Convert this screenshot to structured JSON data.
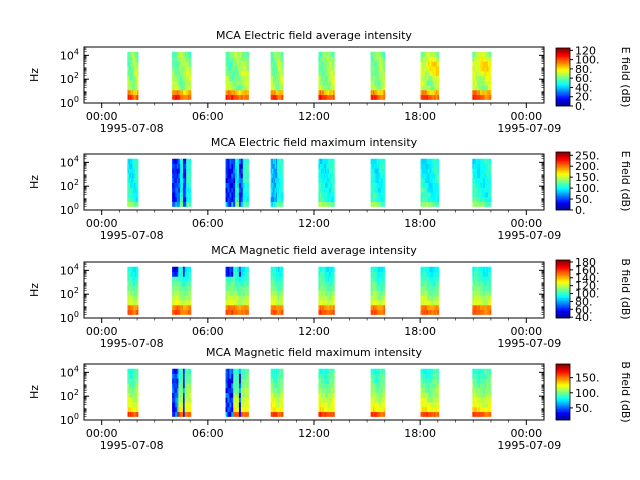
{
  "chart_data": [
    {
      "type": "heatmap",
      "title": "MCA  Electric field average intensity",
      "ylabel": "Hz",
      "colorbar_label": "E field (dB)",
      "colorbar_ticks": [
        "0.",
        "20.",
        "40.",
        "60.",
        "80.",
        "100.",
        "120"
      ],
      "colorbar_range": [
        0,
        125
      ],
      "scheme": "e_avg"
    },
    {
      "type": "heatmap",
      "title": "MCA  Electric field maximum intensity",
      "ylabel": "Hz",
      "colorbar_label": "E field (dB)",
      "colorbar_ticks": [
        "0.",
        "50.",
        "100.",
        "150.",
        "200.",
        "250."
      ],
      "colorbar_range": [
        0,
        265
      ],
      "scheme": "e_max"
    },
    {
      "type": "heatmap",
      "title": "MCA  Magnetic field average intensity",
      "ylabel": "Hz",
      "colorbar_label": "B field (dB)",
      "colorbar_ticks": [
        "40.",
        "60.",
        "80.",
        "100.",
        "120.",
        "140.",
        "160.",
        "180"
      ],
      "colorbar_range": [
        38,
        185
      ],
      "scheme": "b_avg"
    },
    {
      "type": "heatmap",
      "title": "MCA  Magnetic field maximum intensity",
      "ylabel": "Hz",
      "colorbar_label": "B field (dB)",
      "colorbar_ticks": [
        "50.",
        "100.",
        "150."
      ],
      "colorbar_range": [
        10,
        195
      ],
      "scheme": "b_max"
    }
  ],
  "shared": {
    "x_tick_labels": [
      "00:00",
      "06:00",
      "12:00",
      "18:00",
      "00:00"
    ],
    "x_hours": [
      0,
      6,
      12,
      18,
      24
    ],
    "x_range_hours": [
      -1.0,
      25.0
    ],
    "x_date_labels": [
      "1995-07-08",
      "1995-07-09"
    ],
    "y_tick_exponents": [
      "0",
      "2",
      "4"
    ],
    "y_log_range": [
      0,
      4.7
    ],
    "data_log_range": [
      0.3,
      4.3
    ],
    "orbit_passes_hours": [
      [
        1.45,
        2.05
      ],
      [
        3.98,
        5.04
      ],
      [
        7.0,
        8.3
      ],
      [
        9.55,
        10.25
      ],
      [
        12.25,
        13.15
      ],
      [
        15.2,
        16.0
      ],
      [
        18.02,
        19.05
      ],
      [
        20.95,
        22.0
      ]
    ]
  }
}
